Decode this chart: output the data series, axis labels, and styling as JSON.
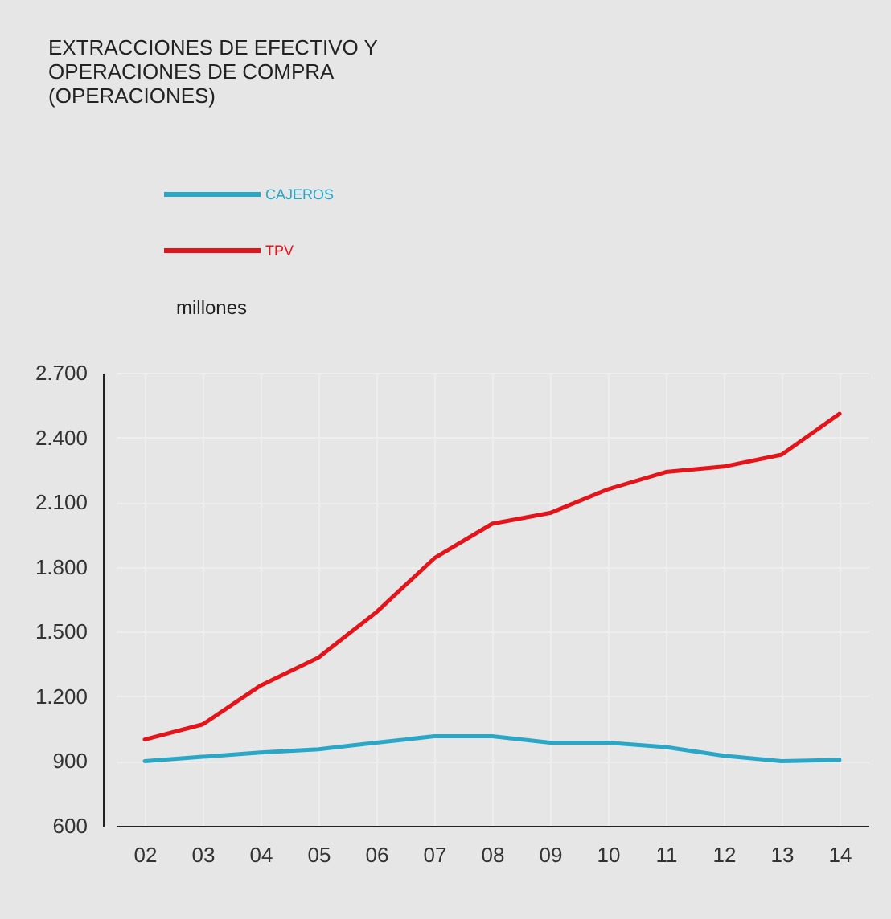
{
  "chart_data": {
    "type": "line",
    "title": "EXTRACCIONES DE EFECTIVO Y\nOPERACIONES DE COMPRA\n(OPERACIONES)",
    "ylabel": "millones",
    "categories": [
      "02",
      "03",
      "04",
      "05",
      "06",
      "07",
      "08",
      "09",
      "10",
      "11",
      "12",
      "13",
      "14"
    ],
    "series": [
      {
        "name": "CAJEROS",
        "color": "#2aa7c6",
        "values": [
          900,
          920,
          940,
          955,
          985,
          1015,
          1015,
          985,
          985,
          965,
          925,
          900,
          905
        ]
      },
      {
        "name": "TPV",
        "color": "#e4141b",
        "values": [
          1000,
          1070,
          1250,
          1380,
          1590,
          1840,
          2000,
          2050,
          2160,
          2240,
          2265,
          2320,
          2510
        ]
      }
    ],
    "ylim": [
      600,
      2700
    ],
    "yticks": [
      {
        "value": 600,
        "label": "600"
      },
      {
        "value": 900,
        "label": "900"
      },
      {
        "value": 1200,
        "label": "1.200"
      },
      {
        "value": 1500,
        "label": "1.500"
      },
      {
        "value": 1800,
        "label": "1.800"
      },
      {
        "value": 2100,
        "label": "2.100"
      },
      {
        "value": 2400,
        "label": "2.400"
      },
      {
        "value": 2700,
        "label": "2.700"
      }
    ],
    "grid": true,
    "legend": "top left",
    "marker": "none",
    "line_style": "solid"
  }
}
